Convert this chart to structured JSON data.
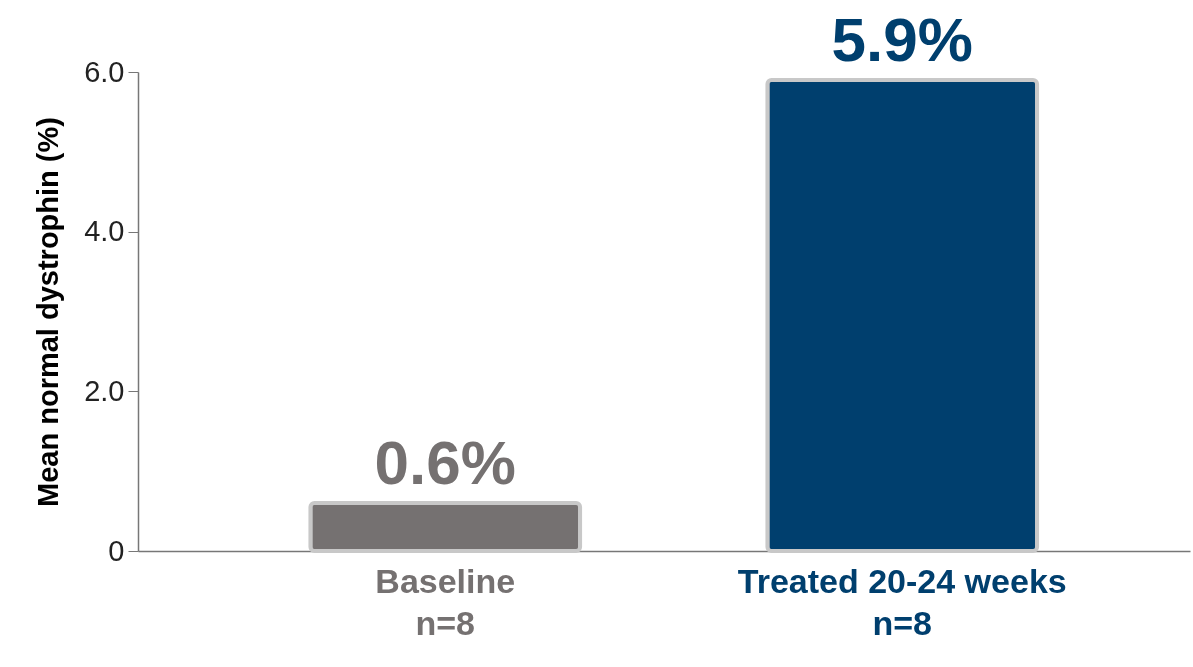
{
  "chart_data": {
    "type": "bar",
    "categories": [
      "Baseline\nn=8",
      "Treated 20-24 weeks\nn=8"
    ],
    "values": [
      0.6,
      5.9
    ],
    "colors": [
      "#757171",
      "#003f6e"
    ],
    "value_labels": [
      "0.6%",
      "5.9%"
    ],
    "ylabel": "Mean normal dystrophin (%)",
    "ylim": [
      0,
      6
    ],
    "yticks": [
      0,
      {
        "value": 2,
        "label": "2.0"
      },
      {
        "value": 4,
        "label": "4.0"
      },
      {
        "value": 6,
        "label": "6.0"
      }
    ]
  }
}
